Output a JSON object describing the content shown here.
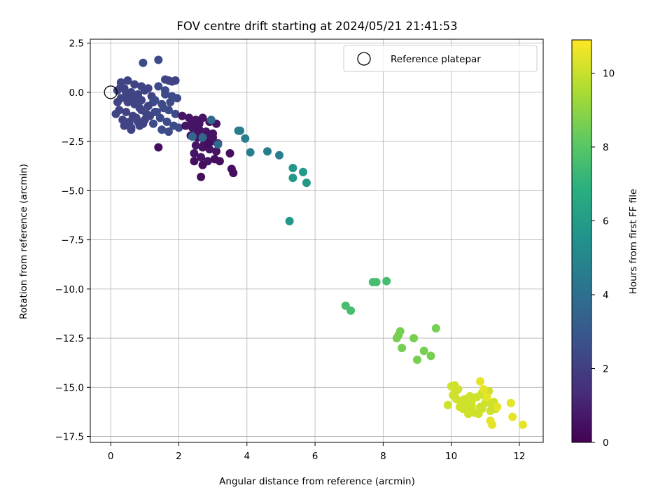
{
  "chart_data": {
    "type": "scatter",
    "title": "FOV centre drift starting at 2024/05/21 21:41:53",
    "xlabel": "Angular distance from reference (arcmin)",
    "ylabel": "Rotation from reference (arcmin)",
    "xlim": [
      -0.6,
      12.7
    ],
    "ylim": [
      -17.8,
      2.7
    ],
    "xticks": [
      0,
      2,
      4,
      6,
      8,
      10,
      12
    ],
    "xtick_labels": [
      "0",
      "2",
      "4",
      "6",
      "8",
      "10",
      "12"
    ],
    "yticks": [
      2.5,
      0,
      -2.5,
      -5,
      -7.5,
      -10,
      -12.5,
      -15,
      -17.5
    ],
    "ytick_labels": [
      "2.5",
      "0.0",
      "−2.5",
      "−5.0",
      "−7.5",
      "−10.0",
      "−12.5",
      "−15.0",
      "−17.5"
    ],
    "grid": true,
    "legend": {
      "location": "upper-right",
      "entries": [
        "Reference platepar"
      ]
    },
    "reference_marker": {
      "x": 0,
      "y": 0
    },
    "colorbar": {
      "label": "Hours from first FF file",
      "colormap": "viridis",
      "range": [
        0,
        10.9
      ],
      "ticks": [
        0,
        2,
        4,
        6,
        8,
        10
      ],
      "tick_labels": [
        "0",
        "2",
        "4",
        "6",
        "8",
        "10"
      ]
    },
    "point_groups": [
      {
        "x": [
          0.3,
          0.5,
          0.7,
          0.9,
          0.2,
          0.4,
          0.6,
          0.8,
          1.0,
          1.2,
          0.3,
          0.5,
          0.7,
          0.9,
          1.1,
          0.25,
          0.45,
          0.65,
          0.85,
          1.05,
          1.3,
          0.35,
          0.55,
          0.75,
          0.95,
          1.15,
          0.15,
          0.4,
          0.6,
          0.8,
          1.0,
          0.5,
          0.7,
          0.9,
          0.3,
          0.6,
          0.2,
          1.1,
          1.25,
          0.45,
          0.85
        ],
        "y": [
          0.5,
          0.6,
          0.4,
          0.3,
          0.1,
          0.2,
          0.0,
          -0.1,
          0.1,
          -0.2,
          -0.3,
          -0.5,
          -0.6,
          -0.4,
          -0.7,
          -0.9,
          -1.0,
          -1.2,
          -0.8,
          -1.1,
          -1.0,
          -1.4,
          -1.5,
          -1.3,
          -1.6,
          -1.2,
          -1.1,
          -1.7,
          -1.8,
          -1.5,
          -1.4,
          -0.2,
          -0.3,
          -0.9,
          0.3,
          -1.9,
          -0.5,
          0.2,
          -0.5,
          0.0,
          -1.7
        ],
        "hours": 2.2
      },
      {
        "x": [
          1.4,
          1.6,
          1.8,
          1.3,
          1.5,
          1.7,
          1.9,
          1.45,
          1.65,
          1.85,
          1.35,
          1.55,
          1.75,
          1.95,
          2.0,
          1.5,
          1.7,
          1.25,
          1.6,
          0.95,
          1.4
        ],
        "y": [
          0.3,
          0.1,
          -0.2,
          -0.4,
          -0.6,
          -0.9,
          -1.1,
          -1.3,
          -1.5,
          -1.7,
          -1.0,
          -0.8,
          -0.5,
          -0.3,
          -1.8,
          -1.9,
          -2.0,
          -1.6,
          -0.1,
          1.5,
          1.65
        ],
        "hours": 2.5
      },
      {
        "x": [
          1.6,
          1.7,
          1.8,
          1.9
        ],
        "y": [
          0.65,
          0.6,
          0.55,
          0.6
        ],
        "hours": 2.2
      },
      {
        "x": [
          2.1,
          2.3,
          2.5,
          2.7,
          2.9,
          3.1,
          2.2,
          2.4,
          2.6,
          2.8,
          3.0,
          2.35,
          2.55,
          2.75,
          2.95,
          3.15,
          2.5,
          2.7,
          2.9,
          3.1,
          2.45,
          2.65,
          2.85,
          2.4,
          2.6,
          2.8,
          3.0,
          2.55,
          2.75
        ],
        "y": [
          -1.2,
          -1.3,
          -1.4,
          -1.3,
          -1.5,
          -1.6,
          -1.7,
          -1.8,
          -1.9,
          -2.0,
          -2.1,
          -2.2,
          -2.3,
          -2.4,
          -2.5,
          -2.6,
          -2.7,
          -2.8,
          -2.9,
          -3.0,
          -3.1,
          -3.3,
          -3.5,
          -1.5,
          -1.6,
          -2.2,
          -2.3,
          -2.0,
          -2.6
        ],
        "hours": 0.6
      },
      {
        "x": [
          2.45,
          2.7,
          3.05,
          3.2,
          3.5,
          3.55,
          3.6,
          2.65,
          1.4,
          2.85
        ],
        "y": [
          -3.5,
          -3.7,
          -3.4,
          -3.5,
          -3.1,
          -3.9,
          -4.1,
          -4.3,
          -2.8,
          -2.6
        ],
        "hours": 0.4
      },
      {
        "x": [
          2.4,
          2.7,
          2.95,
          3.15
        ],
        "y": [
          -2.25,
          -2.3,
          -1.4,
          -2.65
        ],
        "hours": 3.7
      },
      {
        "x": [
          3.75,
          3.8,
          3.95,
          4.1,
          4.6,
          4.95
        ],
        "y": [
          -1.95,
          -1.95,
          -2.35,
          -3.05,
          -3.0,
          -3.2
        ],
        "hours": 4.6
      },
      {
        "x": [
          5.35,
          5.65,
          5.35,
          5.75,
          5.25
        ],
        "y": [
          -3.85,
          -4.05,
          -4.35,
          -4.6,
          -6.55
        ],
        "hours": 5.8
      },
      {
        "x": [
          7.7,
          7.8,
          8.1,
          6.9,
          7.05
        ],
        "y": [
          -9.65,
          -9.65,
          -9.6,
          -10.85,
          -11.1
        ],
        "hours": 7.6
      },
      {
        "x": [
          8.5,
          8.45,
          8.4,
          8.55,
          8.9,
          9.2,
          9.4,
          9.0,
          9.55
        ],
        "y": [
          -12.15,
          -12.35,
          -12.5,
          -13.0,
          -12.5,
          -13.15,
          -13.4,
          -13.6,
          -12.0
        ],
        "hours": 8.6
      },
      {
        "x": [
          10.0,
          10.1,
          10.2,
          10.05,
          10.15,
          10.3,
          10.45,
          10.6,
          10.75,
          10.9,
          11.05,
          11.2,
          10.35,
          10.55,
          10.7,
          10.85,
          11.0,
          11.15,
          11.3,
          10.4,
          10.6,
          10.8,
          10.95,
          11.1,
          9.9,
          10.25,
          10.5,
          10.65,
          10.9,
          11.25,
          10.1,
          10.35,
          10.55
        ],
        "y": [
          -14.95,
          -14.9,
          -15.1,
          -15.4,
          -15.6,
          -15.8,
          -15.9,
          -15.7,
          -15.5,
          -15.3,
          -15.7,
          -15.9,
          -16.1,
          -16.2,
          -16.3,
          -16.0,
          -15.8,
          -16.2,
          -16.1,
          -15.6,
          -15.95,
          -16.35,
          -15.4,
          -15.2,
          -15.9,
          -16.0,
          -16.35,
          -16.25,
          -16.1,
          -15.75,
          -15.3,
          -15.65,
          -15.45
        ],
        "hours": 10.1
      },
      {
        "x": [
          10.85,
          10.95,
          11.05,
          11.15,
          11.2,
          11.35,
          11.75,
          11.8,
          12.1
        ],
        "y": [
          -14.7,
          -15.1,
          -15.5,
          -16.7,
          -16.9,
          -16.0,
          -15.8,
          -16.5,
          -16.9
        ],
        "hours": 10.5
      }
    ]
  }
}
